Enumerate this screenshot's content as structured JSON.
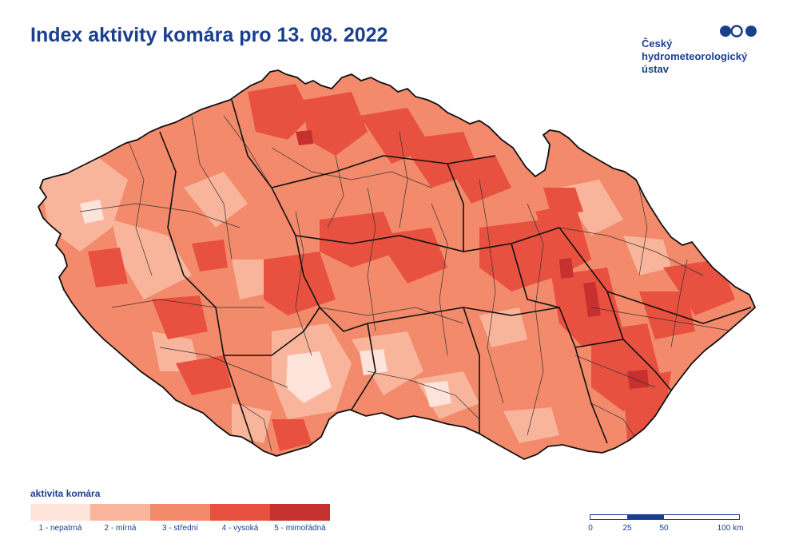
{
  "title": "Index aktivity komára pro 13. 08. 2022",
  "logo": {
    "line1": "Český",
    "line2": "hydrometeorologický",
    "line3": "ústav",
    "icon": "chmu-logo-dots"
  },
  "legend": {
    "title": "aktivita komára",
    "items": [
      {
        "label": "1 - nepatrná",
        "color": "#fde3da"
      },
      {
        "label": "2 - mírná",
        "color": "#f9b59c"
      },
      {
        "label": "3 - střední",
        "color": "#f28a6b"
      },
      {
        "label": "4 - vysoká",
        "color": "#e8513f"
      },
      {
        "label": "5 - mimořádná",
        "color": "#c6302f"
      }
    ]
  },
  "scalebar": {
    "labels": [
      "0",
      "25",
      "50",
      "100 km"
    ]
  },
  "colors": {
    "title": "#1b3f8f",
    "border_major": "#111111",
    "border_minor": "#333333"
  }
}
